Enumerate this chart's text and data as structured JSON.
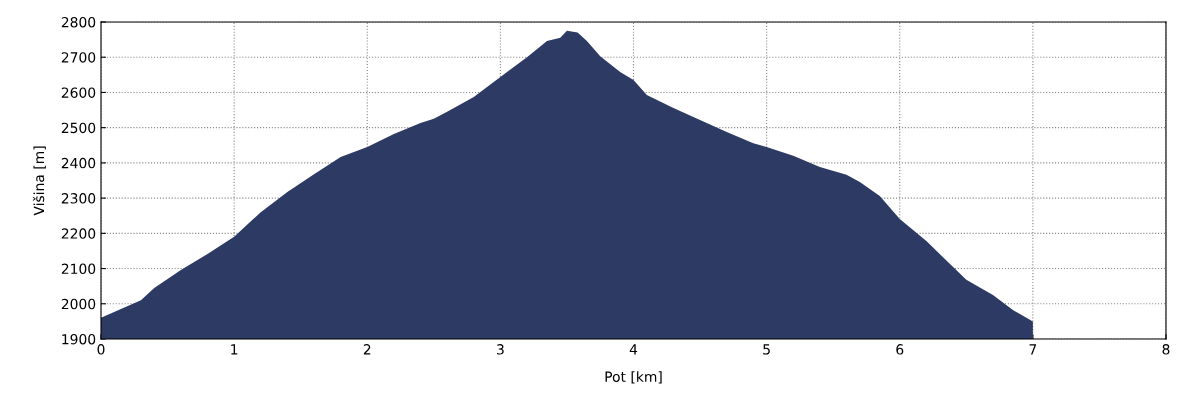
{
  "chart_data": {
    "type": "area",
    "xlabel": "Pot [km]",
    "ylabel": "Višina [m]",
    "xlim": [
      0,
      8
    ],
    "xticks": [
      0,
      1,
      2,
      3,
      4,
      5,
      6,
      7,
      8
    ],
    "ylim": [
      1900,
      2800
    ],
    "yticks": [
      1900,
      2000,
      2100,
      2200,
      2300,
      2400,
      2500,
      2600,
      2700,
      2800
    ],
    "grid": true,
    "legend": false,
    "series": [
      {
        "color": "#2d3a64",
        "x": [
          0,
          0.3,
          0.4,
          0.6,
          0.8,
          1.0,
          1.2,
          1.4,
          1.6,
          1.8,
          2.0,
          2.2,
          2.4,
          2.5,
          2.6,
          2.8,
          3.0,
          3.2,
          3.35,
          3.45,
          3.5,
          3.58,
          3.65,
          3.75,
          3.9,
          4.0,
          4.1,
          4.3,
          4.5,
          4.7,
          4.9,
          5.0,
          5.2,
          5.4,
          5.6,
          5.7,
          5.85,
          6.0,
          6.2,
          6.3,
          6.5,
          6.7,
          6.85,
          7.0
        ],
        "values": [
          1960,
          2010,
          2045,
          2096,
          2141,
          2190,
          2260,
          2317,
          2368,
          2417,
          2445,
          2482,
          2513,
          2525,
          2545,
          2587,
          2644,
          2700,
          2746,
          2755,
          2775,
          2770,
          2746,
          2703,
          2658,
          2635,
          2593,
          2556,
          2522,
          2488,
          2456,
          2445,
          2420,
          2388,
          2366,
          2346,
          2306,
          2241,
          2178,
          2141,
          2068,
          2025,
          1982,
          1950
        ]
      }
    ]
  }
}
